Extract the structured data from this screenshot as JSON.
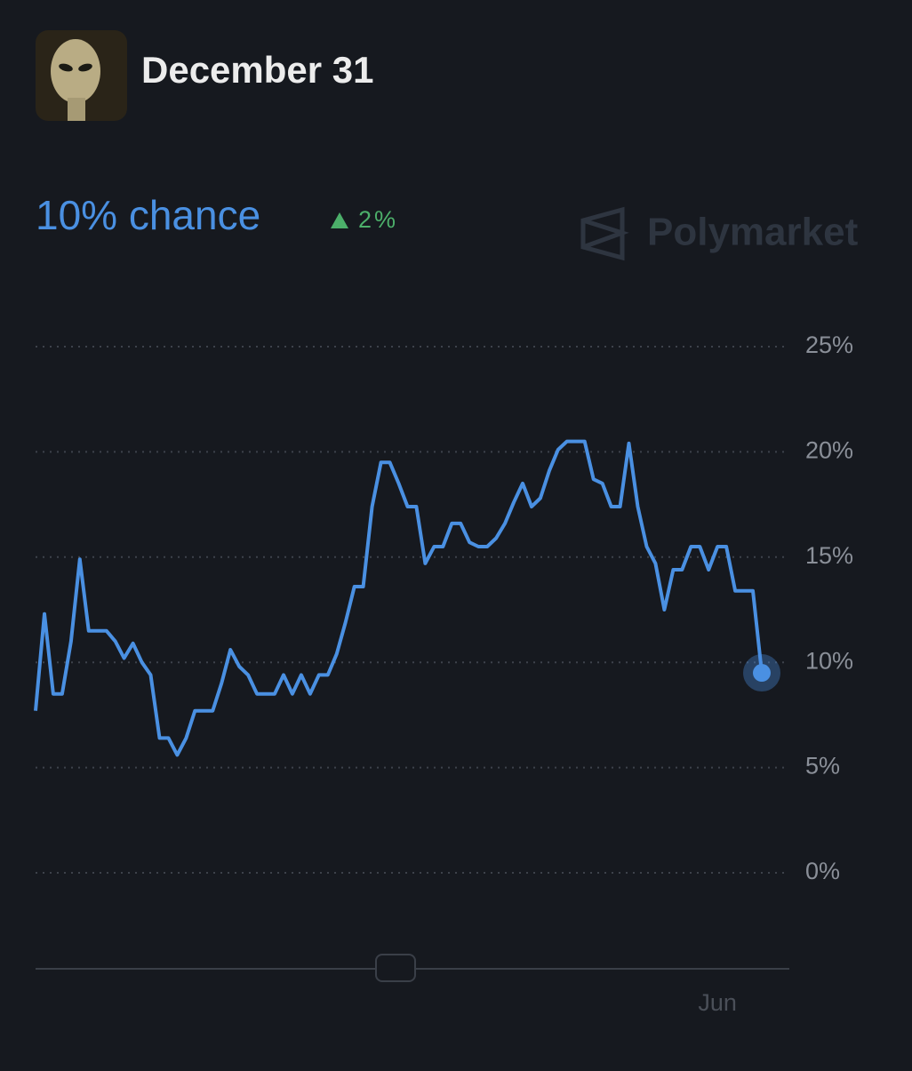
{
  "chart_data": {
    "type": "line",
    "title": "December 31",
    "headline": "10% chance",
    "change": "2%",
    "brand": "Polymarket",
    "color": "#4a90e2",
    "categories": [
      null,
      null,
      null,
      null,
      null,
      null,
      null,
      null,
      null,
      null,
      null,
      null,
      null,
      null,
      null,
      null,
      null,
      null,
      null,
      null,
      null,
      null,
      null,
      null,
      null,
      null,
      null,
      null,
      null,
      null,
      null,
      null,
      null,
      null,
      null,
      null,
      null,
      null,
      null,
      null,
      null,
      null,
      null,
      null,
      null,
      null,
      null,
      null,
      null,
      null,
      null,
      null,
      null,
      null,
      null,
      null,
      null,
      null,
      null,
      null,
      null,
      null,
      null,
      null,
      null,
      null,
      null,
      null,
      null,
      null,
      null,
      null,
      null,
      null,
      null,
      null,
      null,
      "Jun",
      null,
      null,
      null,
      null,
      null
    ],
    "values": [
      7.7,
      12.3,
      8.5,
      8.5,
      11,
      14.9,
      11.5,
      11.5,
      11.5,
      11,
      10.2,
      10.9,
      10,
      9.4,
      6.4,
      6.4,
      5.6,
      6.4,
      7.7,
      7.7,
      7.7,
      9,
      10.6,
      9.8,
      9.4,
      8.5,
      8.5,
      8.5,
      9.4,
      8.5,
      9.4,
      8.5,
      9.4,
      9.4,
      10.4,
      11.9,
      13.6,
      13.6,
      17.4,
      19.5,
      19.5,
      18.5,
      17.4,
      17.4,
      14.7,
      15.5,
      15.5,
      16.6,
      16.6,
      15.7,
      15.5,
      15.5,
      15.9,
      16.6,
      17.6,
      18.5,
      17.4,
      17.8,
      19.1,
      20.1,
      20.5,
      20.5,
      20.5,
      18.7,
      18.5,
      17.4,
      17.4,
      20.4,
      17.4,
      15.5,
      14.7,
      12.5,
      14.4,
      14.4,
      15.5,
      15.5,
      14.4,
      15.5,
      15.5,
      13.4,
      13.4,
      13.4,
      9.5
    ],
    "ylim": [
      0,
      25
    ],
    "yticks": [
      {
        "value": 0,
        "label": "0%"
      },
      {
        "value": 5,
        "label": "5%"
      },
      {
        "value": 10,
        "label": "10%"
      },
      {
        "value": 15,
        "label": "15%"
      },
      {
        "value": 20,
        "label": "20%"
      },
      {
        "value": 25,
        "label": "25%"
      }
    ],
    "grid": true
  }
}
